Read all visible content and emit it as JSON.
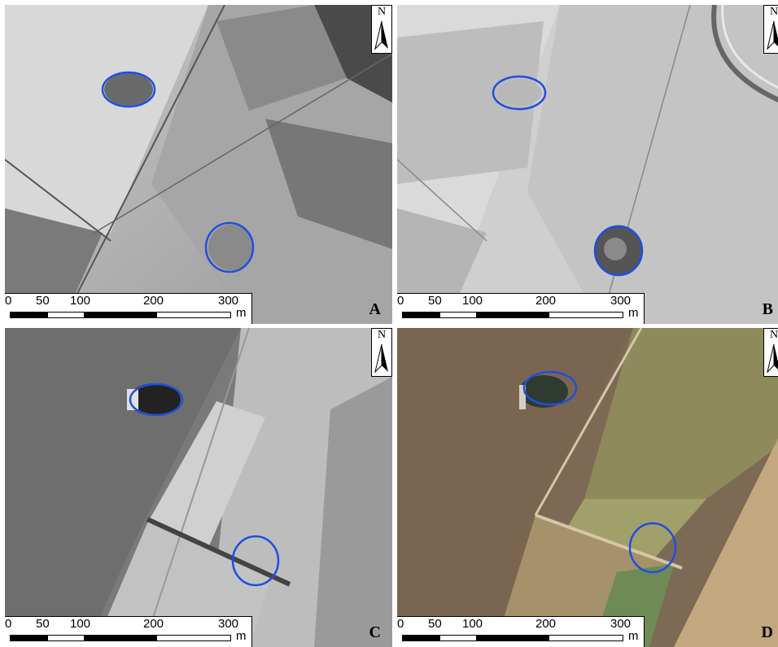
{
  "figure": {
    "panels": [
      {
        "label": "A",
        "scale": {
          "ticks": [
            "0",
            "50",
            "100",
            "200",
            "300"
          ],
          "unit": "m"
        },
        "north": "N",
        "style": "grayscale"
      },
      {
        "label": "B",
        "scale": {
          "ticks": [
            "0",
            "50",
            "100",
            "200",
            "300"
          ],
          "unit": "m"
        },
        "north": "N",
        "style": "grayscale-light"
      },
      {
        "label": "C",
        "scale": {
          "ticks": [
            "0",
            "50",
            "100",
            "200",
            "300"
          ],
          "unit": "m"
        },
        "north": "N",
        "style": "grayscale-dark"
      },
      {
        "label": "D",
        "scale": {
          "ticks": [
            "0",
            "50",
            "100",
            "200",
            "300"
          ],
          "unit": "m"
        },
        "north": "N",
        "style": "color"
      }
    ],
    "highlight_color": "#1f4fe0"
  }
}
